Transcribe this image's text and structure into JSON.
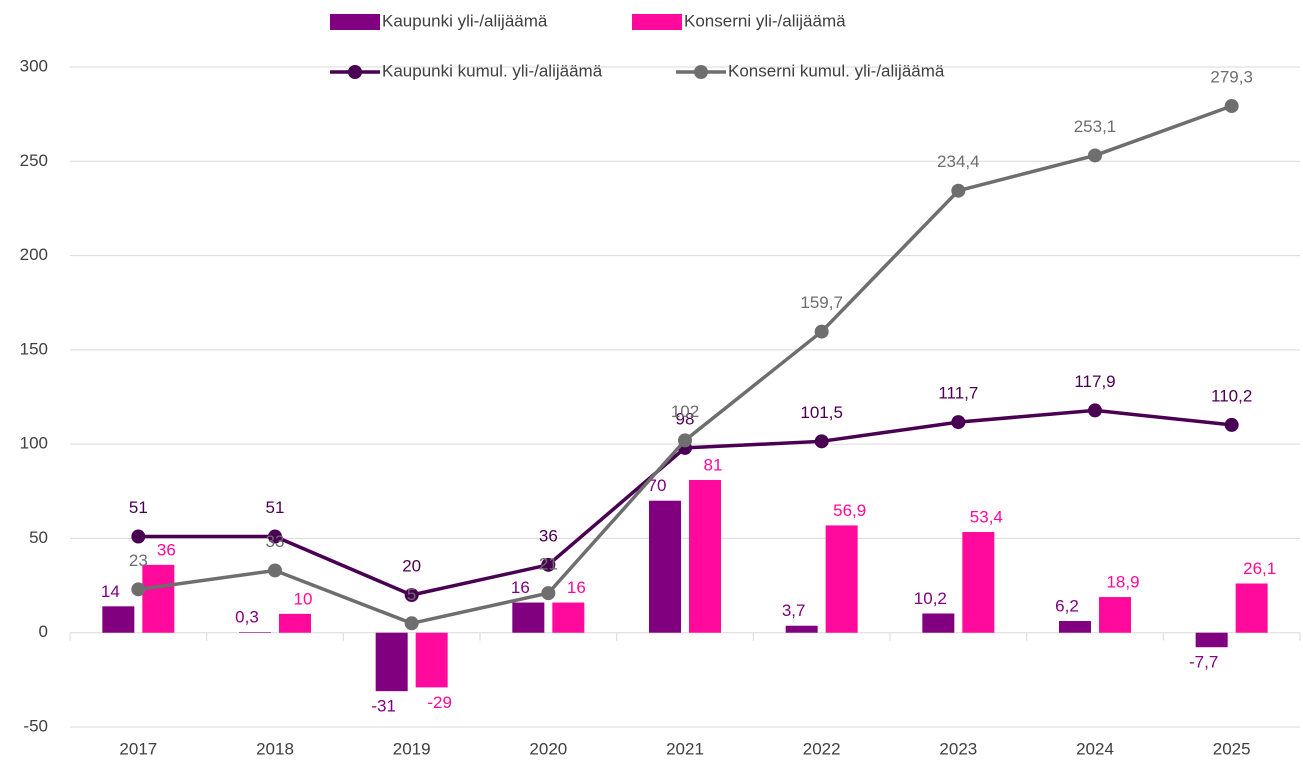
{
  "chart_data": {
    "type": "bar",
    "categories": [
      "2017",
      "2018",
      "2019",
      "2020",
      "2021",
      "2022",
      "2023",
      "2024",
      "2025"
    ],
    "series": [
      {
        "name": "Kaupunki yli-/alijäämä",
        "type": "bar",
        "color": "#800080",
        "values": [
          14,
          0.3,
          -31,
          16,
          70,
          3.7,
          10.2,
          6.2,
          -7.7
        ],
        "value_labels": [
          "14",
          "0,3",
          "-31",
          "16",
          "70",
          "3,7",
          "10,2",
          "6,2",
          "-7,7"
        ]
      },
      {
        "name": "Konserni yli-/alijäämä",
        "type": "bar",
        "color": "#ff0a9c",
        "values": [
          36,
          10,
          -29,
          16,
          81,
          56.9,
          53.4,
          18.9,
          26.1
        ],
        "value_labels": [
          "36",
          "10",
          "-29",
          "16",
          "81",
          "56,9",
          "53,4",
          "18,9",
          "26,1"
        ]
      },
      {
        "name": "Kaupunki kumul. yli-/alijäämä",
        "type": "line",
        "color": "#4a0052",
        "values": [
          51,
          51,
          20,
          36,
          98,
          101.5,
          111.7,
          117.9,
          110.2
        ],
        "value_labels": [
          "51",
          "51",
          "20",
          "36",
          "98",
          "101,5",
          "111,7",
          "117,9",
          "110,2"
        ]
      },
      {
        "name": "Konserni kumul. yli-/alijäämä",
        "type": "line",
        "color": "#6e6e6e",
        "values": [
          23,
          33,
          5,
          21,
          102,
          159.7,
          234.4,
          253.1,
          279.3
        ],
        "value_labels": [
          "23",
          "33",
          "5",
          "21",
          "102",
          "159,7",
          "234,4",
          "253,1",
          "279,3"
        ]
      }
    ],
    "ylim": [
      -50,
      300
    ],
    "yticks": [
      -50,
      0,
      50,
      100,
      150,
      200,
      250,
      300
    ],
    "grid": true,
    "legend": "top"
  }
}
